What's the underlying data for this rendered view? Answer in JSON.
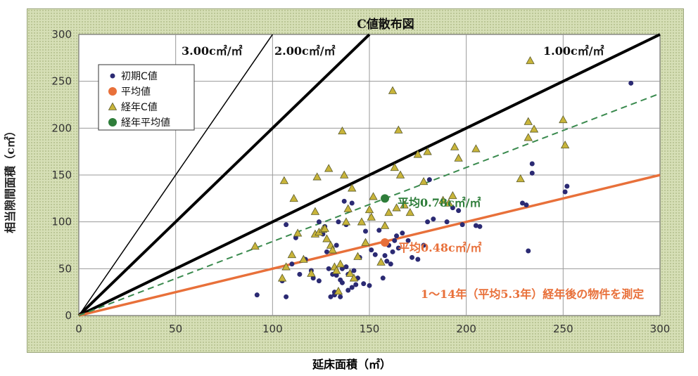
{
  "chart_data": {
    "type": "scatter",
    "title": "C値散布図",
    "xlabel": "延床面積（㎡）",
    "ylabel": "相当隙間面積（c㎡）",
    "xlim": [
      0,
      300
    ],
    "ylim": [
      0,
      300
    ],
    "xticks": [
      "0",
      "50",
      "100",
      "150",
      "200",
      "250",
      "300"
    ],
    "yticks": [
      "0",
      "50",
      "100",
      "150",
      "200",
      "250",
      "300"
    ],
    "grid": true,
    "legend_placement": "top-left",
    "reference_lines": [
      {
        "label": "3.00c㎡/㎡",
        "slope": 3.0,
        "color": "#000000",
        "width": 1.5
      },
      {
        "label": "2.00c㎡/㎡",
        "slope": 2.0,
        "color": "#000000",
        "width": 4
      },
      {
        "label": "1.00c㎡/㎡",
        "slope": 1.0,
        "color": "#000000",
        "width": 4
      }
    ],
    "fit_lines": [
      {
        "slope": 0.5,
        "color": "#e8703a",
        "style": "solid",
        "width": 3.5
      },
      {
        "slope": 0.79,
        "color": "#3a8a4e",
        "style": "dashed",
        "width": 2
      }
    ],
    "annotations": [
      {
        "text": "平均0.78c㎡/㎡",
        "color": "#2e7d3a"
      },
      {
        "text": "平均0.48c㎡/㎡",
        "color": "#e8703a"
      },
      {
        "text": "1～14年（平均5.3年）経年後の物件を測定",
        "color": "#e8703a"
      }
    ],
    "series": [
      {
        "name": "初期C値",
        "marker": "circle",
        "color": "#2b2a73",
        "points": [
          [
            92,
            22
          ],
          [
            105,
            37
          ],
          [
            107,
            97
          ],
          [
            107,
            20
          ],
          [
            110,
            55
          ],
          [
            112,
            83
          ],
          [
            114,
            44
          ],
          [
            117,
            60
          ],
          [
            120,
            48
          ],
          [
            121,
            40
          ],
          [
            124,
            37
          ],
          [
            124,
            100
          ],
          [
            126,
            87
          ],
          [
            127,
            95
          ],
          [
            128,
            68
          ],
          [
            129,
            50
          ],
          [
            130,
            20
          ],
          [
            131,
            44
          ],
          [
            132,
            25
          ],
          [
            132,
            22
          ],
          [
            133,
            43
          ],
          [
            133,
            75
          ],
          [
            134,
            100
          ],
          [
            135,
            20
          ],
          [
            135,
            38
          ],
          [
            136,
            35
          ],
          [
            136,
            50
          ],
          [
            137,
            122
          ],
          [
            138,
            97
          ],
          [
            138,
            52
          ],
          [
            139,
            27
          ],
          [
            139,
            44
          ],
          [
            140,
            45
          ],
          [
            141,
            120
          ],
          [
            141,
            30
          ],
          [
            142,
            48
          ],
          [
            143,
            33
          ],
          [
            144,
            40
          ],
          [
            145,
            62
          ],
          [
            147,
            34
          ],
          [
            148,
            90
          ],
          [
            150,
            32
          ],
          [
            151,
            70
          ],
          [
            153,
            65
          ],
          [
            155,
            91
          ],
          [
            157,
            40
          ],
          [
            158,
            64
          ],
          [
            159,
            58
          ],
          [
            160,
            75
          ],
          [
            161,
            55
          ],
          [
            162,
            68
          ],
          [
            163,
            80
          ],
          [
            164,
            85
          ],
          [
            165,
            72
          ],
          [
            167,
            88
          ],
          [
            170,
            80
          ],
          [
            172,
            62
          ],
          [
            175,
            60
          ],
          [
            178,
            75
          ],
          [
            180,
            100
          ],
          [
            181,
            145
          ],
          [
            183,
            103
          ],
          [
            190,
            100
          ],
          [
            193,
            115
          ],
          [
            196,
            112
          ],
          [
            198,
            97
          ],
          [
            205,
            96
          ],
          [
            207,
            95
          ],
          [
            229,
            120
          ],
          [
            231,
            118
          ],
          [
            232,
            69
          ],
          [
            234,
            162
          ],
          [
            234,
            152
          ],
          [
            251,
            132
          ],
          [
            252,
            138
          ],
          [
            285,
            248
          ]
        ]
      },
      {
        "name": "平均値",
        "marker": "circle-large",
        "color": "#e8703a",
        "points": [
          [
            158,
            78
          ]
        ]
      },
      {
        "name": "経年C値",
        "marker": "triangle",
        "color": "#c8b43a",
        "points": [
          [
            91,
            74
          ],
          [
            105,
            40
          ],
          [
            106,
            144
          ],
          [
            107,
            52
          ],
          [
            110,
            65
          ],
          [
            111,
            125
          ],
          [
            113,
            88
          ],
          [
            116,
            60
          ],
          [
            120,
            45
          ],
          [
            122,
            87
          ],
          [
            122,
            111
          ],
          [
            123,
            148
          ],
          [
            124,
            89
          ],
          [
            126,
            92
          ],
          [
            127,
            93
          ],
          [
            128,
            82
          ],
          [
            129,
            157
          ],
          [
            130,
            75
          ],
          [
            131,
            70
          ],
          [
            132,
            52
          ],
          [
            133,
            48
          ],
          [
            134,
            26
          ],
          [
            135,
            55
          ],
          [
            136,
            197
          ],
          [
            137,
            150
          ],
          [
            138,
            100
          ],
          [
            139,
            114
          ],
          [
            140,
            45
          ],
          [
            141,
            136
          ],
          [
            142,
            40
          ],
          [
            144,
            63
          ],
          [
            146,
            100
          ],
          [
            148,
            78
          ],
          [
            150,
            113
          ],
          [
            151,
            105
          ],
          [
            152,
            127
          ],
          [
            156,
            57
          ],
          [
            158,
            96
          ],
          [
            160,
            110
          ],
          [
            162,
            240
          ],
          [
            163,
            158
          ],
          [
            164,
            115
          ],
          [
            165,
            198
          ],
          [
            166,
            150
          ],
          [
            168,
            118
          ],
          [
            171,
            110
          ],
          [
            175,
            172
          ],
          [
            178,
            143
          ],
          [
            180,
            175
          ],
          [
            188,
            123
          ],
          [
            191,
            120
          ],
          [
            193,
            128
          ],
          [
            194,
            180
          ],
          [
            196,
            168
          ],
          [
            205,
            178
          ],
          [
            228,
            146
          ],
          [
            232,
            207
          ],
          [
            232,
            190
          ],
          [
            235,
            199
          ],
          [
            233,
            272
          ],
          [
            250,
            209
          ],
          [
            251,
            182
          ]
        ]
      },
      {
        "name": "経年平均値",
        "marker": "circle-large",
        "color": "#2e7d3a",
        "points": [
          [
            158,
            125
          ]
        ]
      }
    ]
  }
}
